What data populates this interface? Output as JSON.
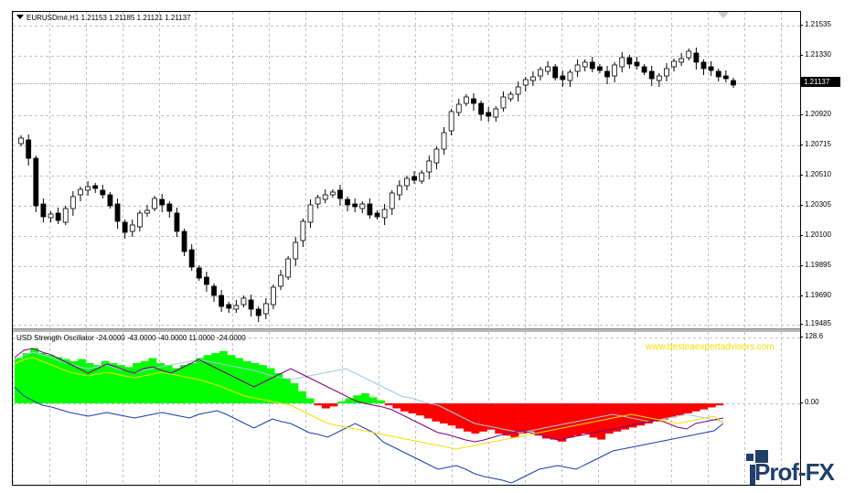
{
  "chart": {
    "symbol_line": "EURUSDm#,H1  1.21153 1.21185 1.21121 1.21137",
    "price_axis": [
      "1.21535",
      "1.21330",
      "1.20920",
      "1.20715",
      "1.20510",
      "1.20305",
      "1.20100",
      "1.19895",
      "1.19690",
      "1.19485"
    ],
    "current_price": "1.21137"
  },
  "indicator": {
    "title": "USD Strength Oscillator -24.0000 -43.0000 -40.0000 11.0000 -24.0000",
    "axis": [
      "128.6",
      "0.00"
    ],
    "watermark": "www.besteaexpertadvisors.com"
  },
  "logo": {
    "text": "Prof-FX"
  },
  "colors": {
    "candle_bull": "#ffffff",
    "candle_bear": "#000000",
    "grid": "#c0c0c0",
    "histogram_positive": "#00ff00",
    "histogram_negative": "#ff0000",
    "line_purple": "#800080",
    "line_lightblue": "#a0c8e0",
    "line_blue": "#1a3cb0",
    "line_yellow": "#f0e000",
    "watermark": "#f3e000",
    "logo": "#20406a"
  }
}
